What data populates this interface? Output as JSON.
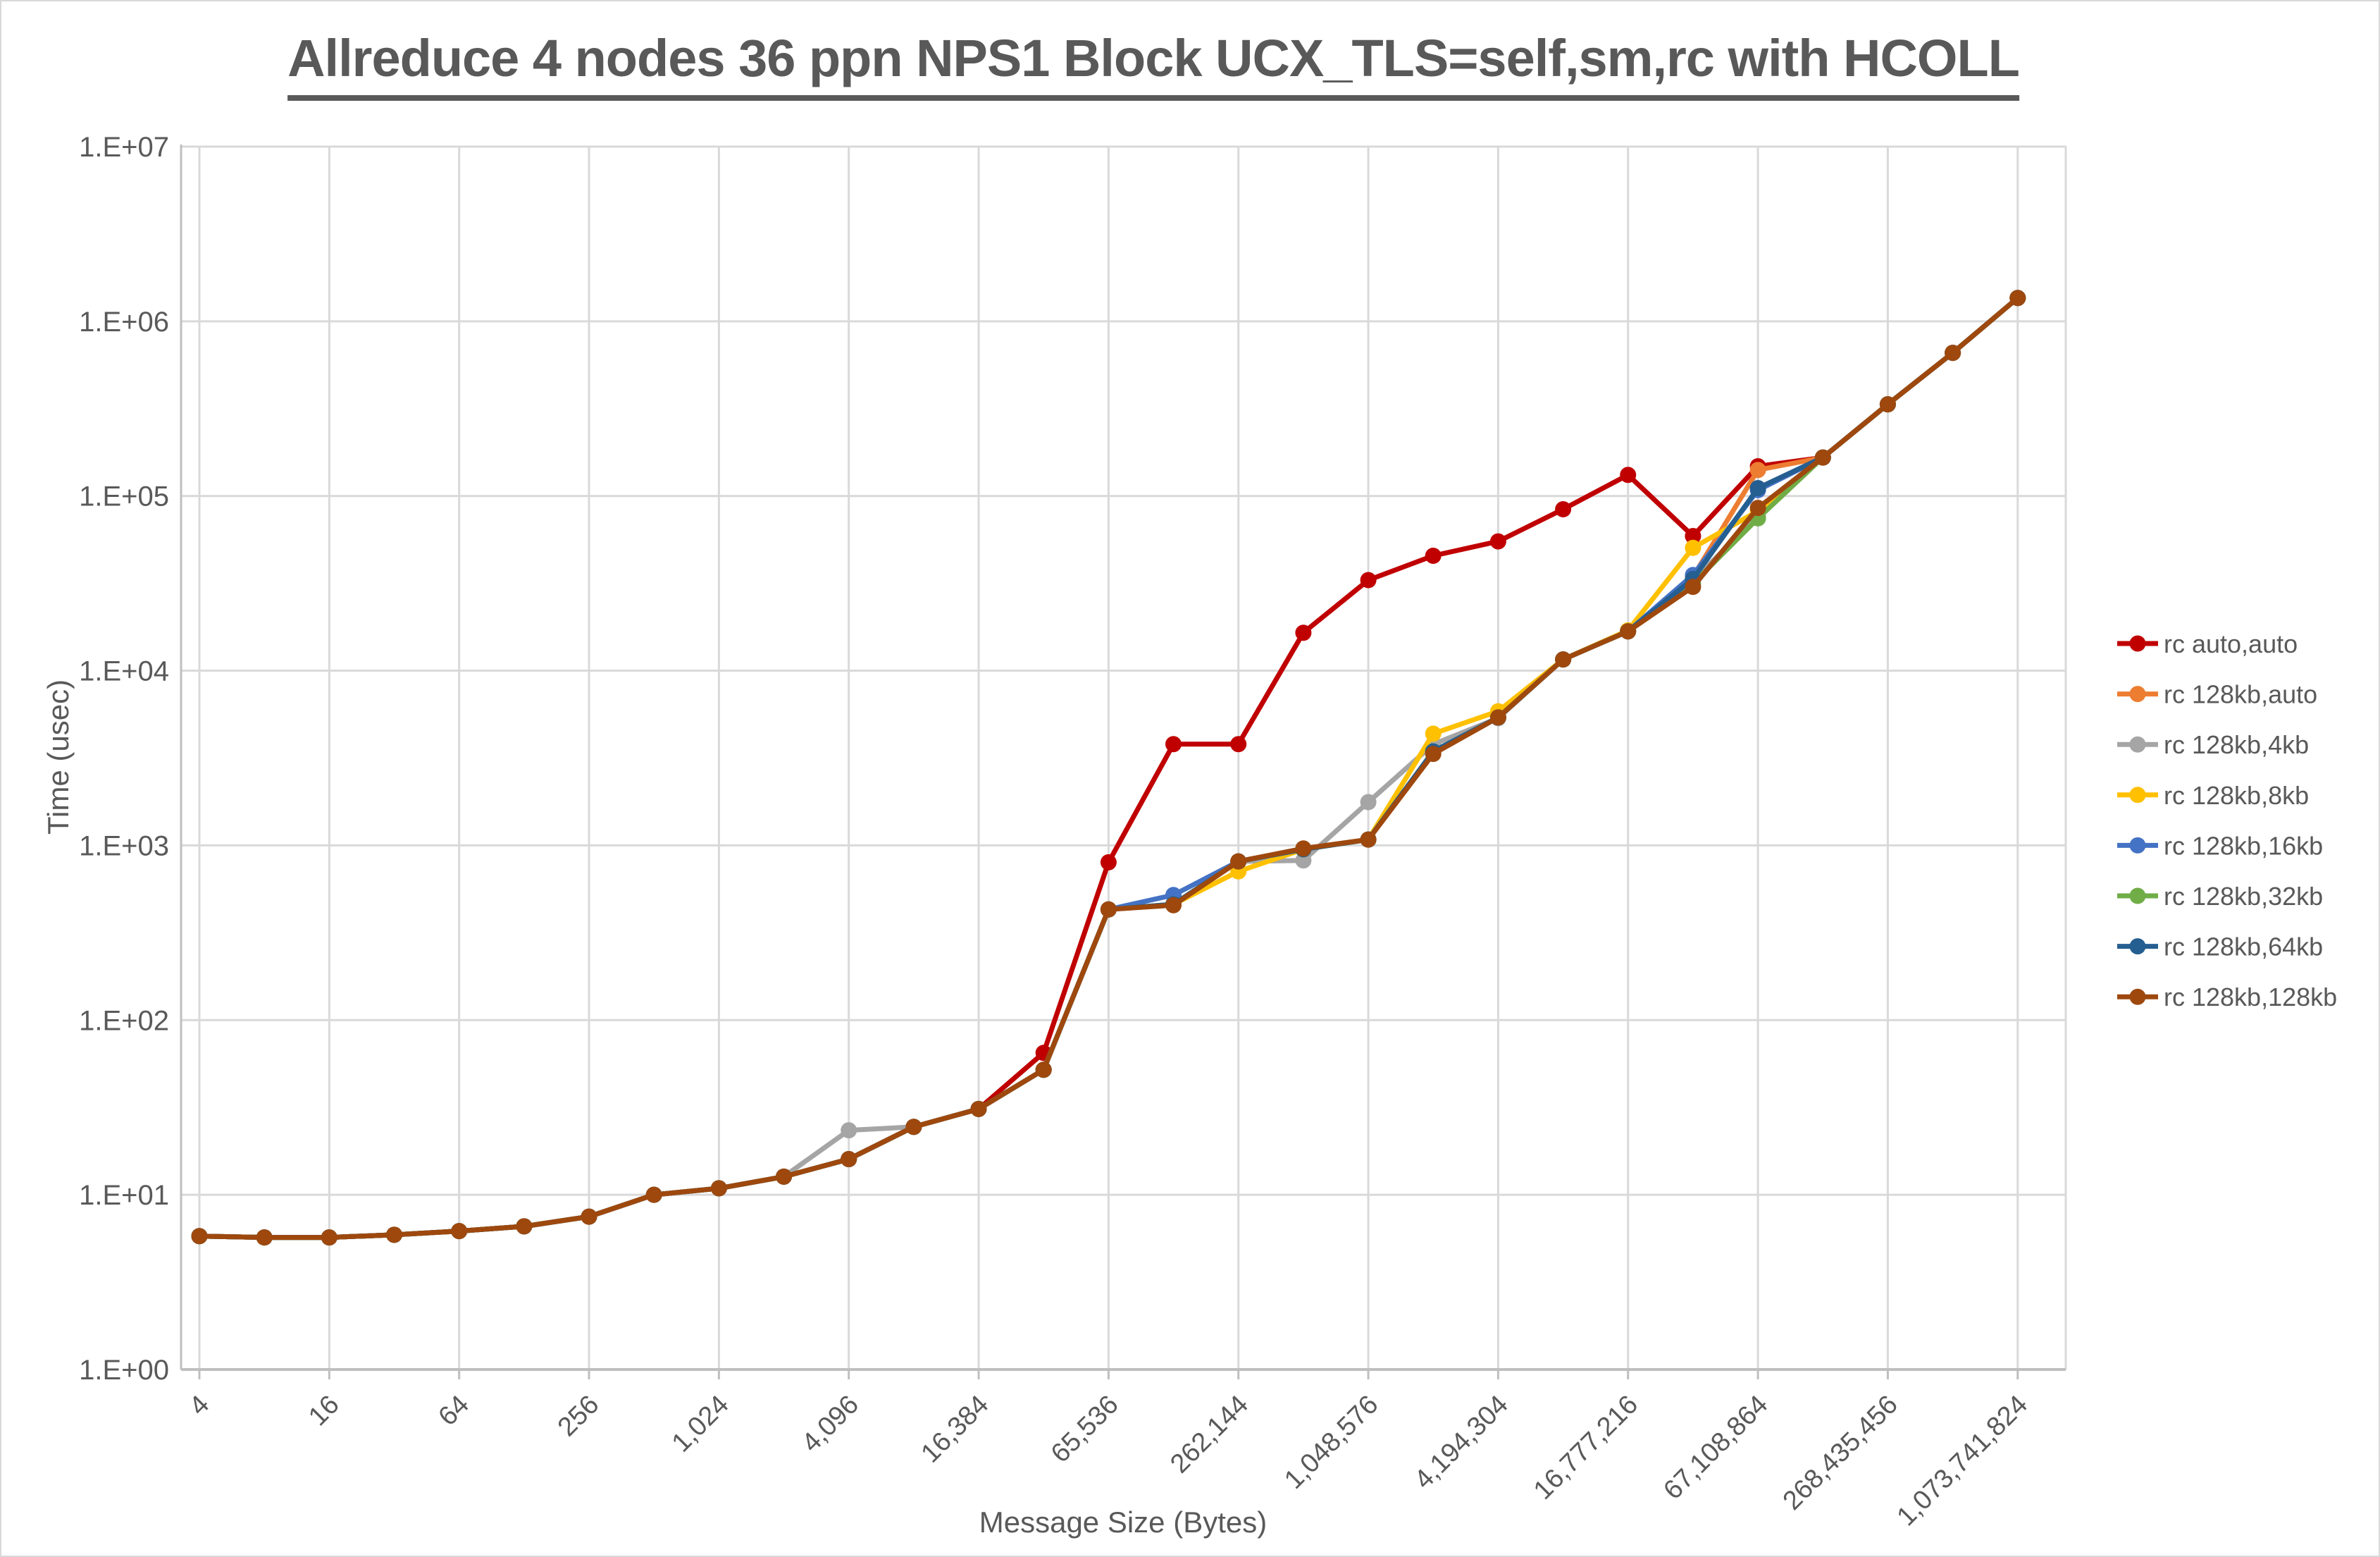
{
  "title": "Allreduce 4 nodes 36 ppn NPS1 Block UCX_TLS=self,sm,rc with HCOLL",
  "y_axis": {
    "label": "Time (usec)",
    "tick_labels": [
      "1.E+00",
      "1.E+01",
      "1.E+02",
      "1.E+03",
      "1.E+04",
      "1.E+05",
      "1.E+06",
      "1.E+07"
    ]
  },
  "x_axis": {
    "label": "Message Size (Bytes)",
    "tick_labels": [
      "4",
      "16",
      "64",
      "256",
      "1,024",
      "4,096",
      "16,384",
      "65,536",
      "262,144",
      "1,048,576",
      "4,194,304",
      "16,777,216",
      "67,108,864",
      "268,435,456",
      "1,073,741,824"
    ]
  },
  "colors": {
    "grid": "#d9d9d9",
    "axis": "#bfbfbf",
    "text": "#595959"
  },
  "chart_data": {
    "type": "line",
    "title": "Allreduce 4 nodes 36 ppn NPS1 Block UCX_TLS=self,sm,rc with HCOLL",
    "xlabel": "Message Size (Bytes)",
    "ylabel": "Time (usec)",
    "yscale": "log10",
    "ylim": [
      1,
      10000000
    ],
    "xscale": "log2-categories",
    "grid": true,
    "legend_position": "right",
    "marker": "circle",
    "x": [
      4,
      8,
      16,
      32,
      64,
      128,
      256,
      512,
      1024,
      2048,
      4096,
      8192,
      16384,
      32768,
      65536,
      131072,
      262144,
      524288,
      1048576,
      2097152,
      4194304,
      8388608,
      16777216,
      33554432,
      67108864,
      134217728,
      268435456,
      536870912,
      1073741824
    ],
    "series": [
      {
        "name": "rc auto,auto",
        "color": "#C00000",
        "values": [
          5.8,
          5.7,
          5.7,
          5.9,
          6.2,
          6.6,
          7.5,
          10.0,
          10.9,
          12.7,
          16.0,
          24.5,
          31,
          65,
          800,
          3800,
          3800,
          16500,
          33000,
          45500,
          55000,
          84000,
          132000,
          59000,
          148000,
          166000,
          335000,
          660000,
          1360000
        ]
      },
      {
        "name": "rc 128kb,auto",
        "color": "#ED7D31",
        "values": [
          5.8,
          5.7,
          5.7,
          5.9,
          6.2,
          6.6,
          7.5,
          10.0,
          10.9,
          12.7,
          16.0,
          24.5,
          31,
          52,
          430,
          460,
          810,
          950,
          1080,
          3450,
          5400,
          11600,
          16800,
          34500,
          141000,
          166000,
          335000,
          660000,
          1360000
        ]
      },
      {
        "name": "rc 128kb,4kb",
        "color": "#A5A5A5",
        "values": [
          5.8,
          5.7,
          5.7,
          5.9,
          6.2,
          6.6,
          7.5,
          10.0,
          10.9,
          12.7,
          23.4,
          24.5,
          31,
          52,
          430,
          455,
          810,
          820,
          1770,
          3790,
          5350,
          11600,
          16800,
          33000,
          76000,
          166000,
          335000,
          660000,
          1360000
        ]
      },
      {
        "name": "rc 128kb,8kb",
        "color": "#FFC000",
        "values": [
          5.8,
          5.7,
          5.7,
          5.9,
          6.2,
          6.6,
          7.5,
          10.0,
          10.9,
          12.7,
          16.0,
          24.5,
          31,
          52,
          430,
          460,
          710,
          950,
          1080,
          4360,
          5860,
          11600,
          17000,
          50500,
          82000,
          166000,
          335000,
          660000,
          1360000
        ]
      },
      {
        "name": "rc 128kb,16kb",
        "color": "#4472C4",
        "values": [
          5.8,
          5.7,
          5.7,
          5.9,
          6.2,
          6.6,
          7.5,
          10.0,
          10.9,
          12.7,
          16.0,
          24.5,
          31,
          52,
          430,
          520,
          810,
          950,
          1080,
          3450,
          5400,
          11600,
          16800,
          35300,
          108000,
          166000,
          335000,
          660000,
          1360000
        ]
      },
      {
        "name": "rc 128kb,32kb",
        "color": "#70AD47",
        "values": [
          5.8,
          5.7,
          5.7,
          5.9,
          6.2,
          6.6,
          7.5,
          10.0,
          10.9,
          12.7,
          16.0,
          24.5,
          31,
          52,
          430,
          460,
          810,
          950,
          1080,
          3450,
          5400,
          11600,
          16800,
          31500,
          74500,
          166000,
          335000,
          660000,
          1360000
        ]
      },
      {
        "name": "rc 128kb,64kb",
        "color": "#255E91",
        "values": [
          5.8,
          5.7,
          5.7,
          5.9,
          6.2,
          6.6,
          7.5,
          10.0,
          10.9,
          12.7,
          16.0,
          24.5,
          31,
          52,
          430,
          460,
          810,
          950,
          1080,
          3450,
          5400,
          11600,
          16800,
          33500,
          111000,
          166000,
          335000,
          660000,
          1360000
        ]
      },
      {
        "name": "rc 128kb,128kb",
        "color": "#9E480E",
        "values": [
          5.8,
          5.7,
          5.7,
          5.9,
          6.2,
          6.6,
          7.5,
          10.0,
          10.9,
          12.7,
          16.0,
          24.5,
          31,
          52,
          430,
          455,
          810,
          960,
          1080,
          3340,
          5400,
          11600,
          16800,
          30200,
          85500,
          166000,
          335000,
          660000,
          1360000
        ]
      }
    ]
  }
}
